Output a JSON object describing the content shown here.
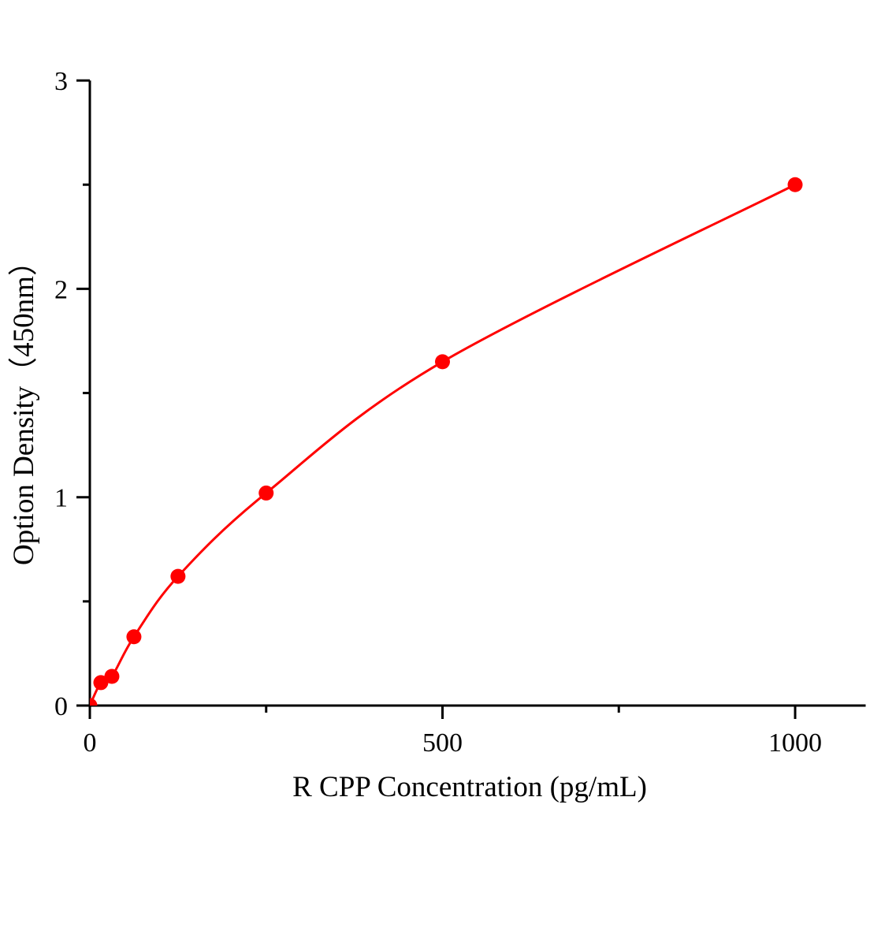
{
  "chart_data": {
    "type": "scatter",
    "title": "",
    "xlabel": "R CPP Concentration (pg/mL)",
    "ylabel": "Option Density（450nm）",
    "xlim": [
      0,
      1100
    ],
    "ylim": [
      0,
      3
    ],
    "x_ticks": [
      0,
      500,
      1000
    ],
    "x_tick_labels": [
      "0",
      "500",
      "1000"
    ],
    "x_minor_ticks": [
      250,
      750
    ],
    "y_ticks": [
      0,
      1,
      2,
      3
    ],
    "y_tick_labels": [
      "0",
      "1",
      "2",
      "3"
    ],
    "y_minor_ticks": [
      0.5,
      1.5,
      2.5
    ],
    "grid": false,
    "color": "#ff0000",
    "series": [
      {
        "x": [
          0,
          15.6,
          31.25,
          62.5,
          125,
          250,
          500,
          1000
        ],
        "y": [
          0,
          0.11,
          0.14,
          0.33,
          0.62,
          1.02,
          1.65,
          2.5
        ],
        "fit_curve": true
      }
    ]
  }
}
